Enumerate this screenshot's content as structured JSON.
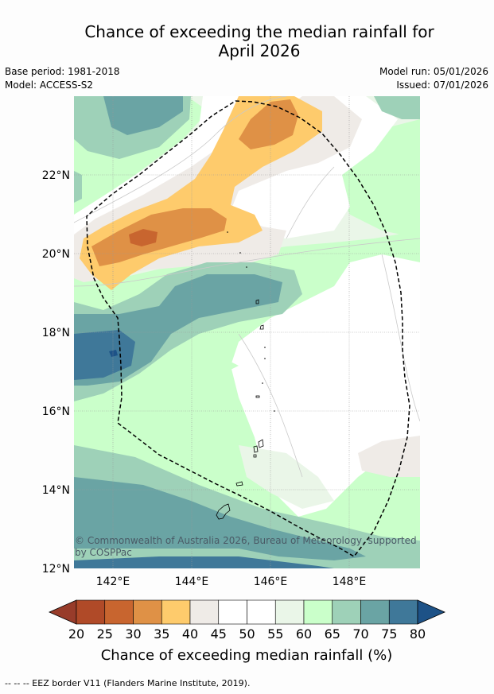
{
  "header": {
    "title_line1": "Chance of exceeding the median rainfall for",
    "title_line2": "April 2026",
    "base_period": "Base period: 1981-2018",
    "model": "Model: ACCESS-S2",
    "model_run": "Model run: 05/01/2026",
    "issued": "Issued: 07/01/2026"
  },
  "map": {
    "lat_labels": [
      "22°N",
      "20°N",
      "18°N",
      "16°N",
      "14°N",
      "12°N"
    ],
    "lon_labels": [
      "142°E",
      "144°E",
      "146°E",
      "148°E"
    ],
    "credit_line1": "© Commonwealth of Australia 2026, Bureau of Meteorology, supported",
    "credit_line2": "by COSPPac"
  },
  "colorbar": {
    "labels": [
      "20",
      "25",
      "30",
      "35",
      "40",
      "45",
      "50",
      "55",
      "60",
      "65",
      "70",
      "75",
      "80"
    ],
    "colors": [
      "#b04a28",
      "#c8652f",
      "#df9146",
      "#fecb6c",
      "#efebe7",
      "#ffffff",
      "#ffffff",
      "#eaf6e8",
      "#caffca",
      "#9ed1b8",
      "#6aa4a4",
      "#3f7899"
    ],
    "under_color": "#983c2a",
    "over_color": "#1d5287",
    "title": "Chance of exceeding median rainfall (%)"
  },
  "footer": {
    "legend": "--  --  -- EEZ border V11 (Flanders Marine Institute, 2019)."
  }
}
